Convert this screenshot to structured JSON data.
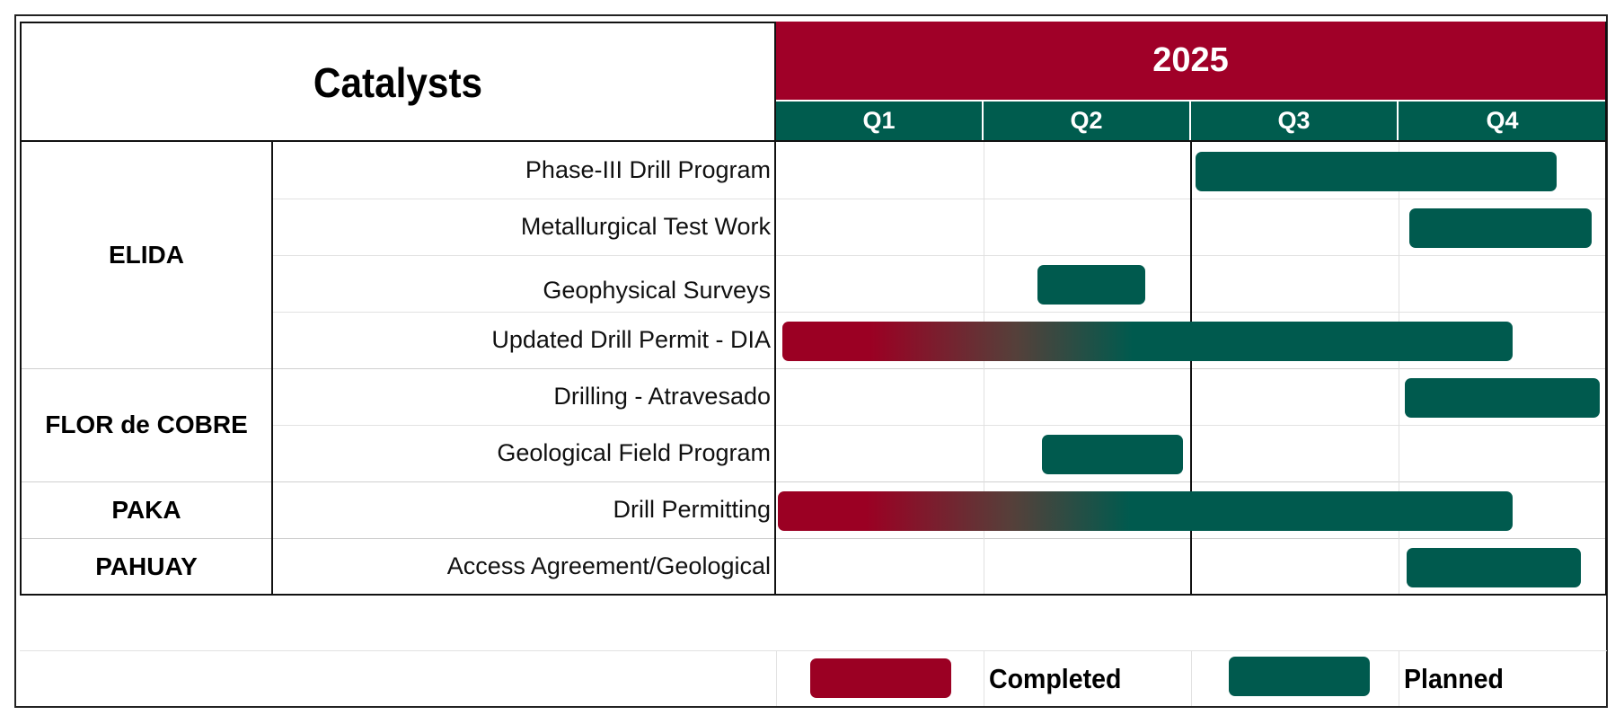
{
  "header": {
    "title": "Catalysts",
    "year": "2025",
    "quarters": [
      "Q1",
      "Q2",
      "Q3",
      "Q4"
    ]
  },
  "colors": {
    "completed": "#9b0023",
    "planned": "#005a4e",
    "year_bg": "#a00028",
    "quarter_bg": "#005c4e"
  },
  "groups": [
    {
      "name": "ELIDA",
      "row_start": 0,
      "row_count": 4
    },
    {
      "name": "FLOR de COBRE",
      "row_start": 4,
      "row_count": 2
    },
    {
      "name": "PAKA",
      "row_start": 6,
      "row_count": 1
    },
    {
      "name": "PAHUAY",
      "row_start": 7,
      "row_count": 1
    }
  ],
  "tasks": [
    {
      "label": "Phase-III Drill Program",
      "start_q": 3.02,
      "end_q": 4.76,
      "status": "planned"
    },
    {
      "label": "Metallurgical Test Work",
      "start_q": 4.05,
      "end_q": 4.93,
      "status": "planned"
    },
    {
      "label": "Geophysical Surveys",
      "start_q": 2.26,
      "end_q": 2.78,
      "status": "planned"
    },
    {
      "label": "Updated Drill Permit - DIA",
      "start_q": 1.03,
      "end_q": 4.55,
      "status": "completed-to-planned"
    },
    {
      "label": "Drilling - Atravesado",
      "start_q": 4.03,
      "end_q": 4.97,
      "status": "planned"
    },
    {
      "label": "Geological Field Program",
      "start_q": 2.28,
      "end_q": 2.96,
      "status": "planned"
    },
    {
      "label": "Drill Permitting",
      "start_q": 1.01,
      "end_q": 4.55,
      "status": "completed-to-planned"
    },
    {
      "label": "Access Agreement/Geological",
      "start_q": 4.04,
      "end_q": 4.88,
      "status": "planned"
    }
  ],
  "legend": {
    "completed_label": "Completed",
    "planned_label": "Planned"
  }
}
